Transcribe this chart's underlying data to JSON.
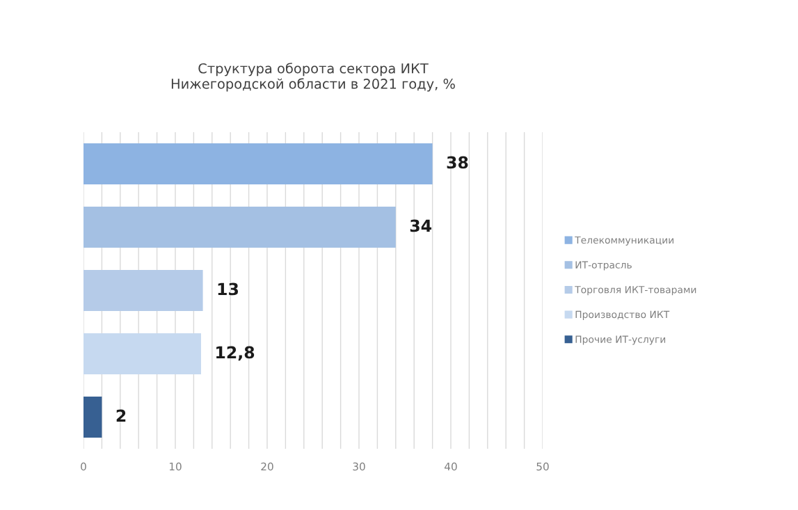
{
  "chart_data": {
    "type": "bar",
    "orientation": "horizontal",
    "title": "Структура оборота сектора ИКТ\nНижегородской области в 2021 году, %",
    "categories": [
      null,
      null,
      null,
      null,
      null
    ],
    "series": [
      {
        "name": "Телекоммуникации",
        "color": "#8db3e2",
        "values": [
          38,
          null,
          null,
          null,
          null
        ],
        "value_labels": [
          "38",
          null,
          null,
          null,
          null
        ]
      },
      {
        "name": "ИТ-отрасль",
        "color": "#a4c0e3",
        "values": [
          null,
          34,
          null,
          null,
          null
        ],
        "value_labels": [
          null,
          "34",
          null,
          null,
          null
        ]
      },
      {
        "name": "Торговля ИКТ-товарами",
        "color": "#b5cbe8",
        "values": [
          null,
          null,
          13,
          null,
          null
        ],
        "value_labels": [
          null,
          null,
          "13",
          null,
          null
        ]
      },
      {
        "name": "Производство ИКТ",
        "color": "#c6d9f0",
        "values": [
          null,
          null,
          null,
          12.8,
          null
        ],
        "value_labels": [
          null,
          null,
          null,
          "12,8",
          null
        ]
      },
      {
        "name": "Прочие ИТ-услуги",
        "color": "#376092",
        "values": [
          null,
          null,
          null,
          null,
          2
        ],
        "value_labels": [
          null,
          null,
          null,
          null,
          "2"
        ]
      }
    ],
    "xlim": [
      0,
      50
    ],
    "xticks": [
      0,
      {
        "value": 2,
        "label": null
      },
      {
        "value": 4,
        "label": null
      },
      {
        "value": 6,
        "label": null
      },
      {
        "value": 8,
        "label": null
      },
      10,
      {
        "value": 12,
        "label": null
      },
      {
        "value": 14,
        "label": null
      },
      {
        "value": 16,
        "label": null
      },
      {
        "value": 18,
        "label": null
      },
      20,
      {
        "value": 22,
        "label": null
      },
      {
        "value": 24,
        "label": null
      },
      {
        "value": 26,
        "label": null
      },
      {
        "value": 28,
        "label": null
      },
      30,
      {
        "value": 32,
        "label": null
      },
      {
        "value": 34,
        "label": null
      },
      {
        "value": 36,
        "label": null
      },
      {
        "value": 38,
        "label": null
      },
      40,
      {
        "value": 42,
        "label": null
      },
      {
        "value": 44,
        "label": null
      },
      {
        "value": 46,
        "label": null
      },
      {
        "value": 48,
        "label": null
      },
      50
    ],
    "grid": "x",
    "legend": "right"
  }
}
